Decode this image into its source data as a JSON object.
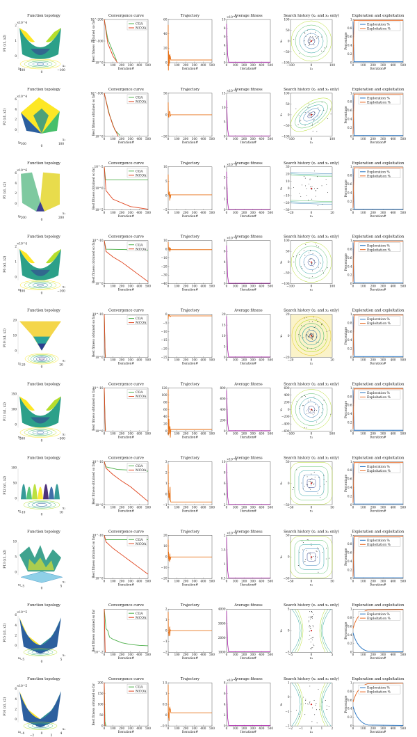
{
  "figure": {
    "col_titles": [
      "Function topology",
      "Convergence curve",
      "Trajectory",
      "Average fitness",
      "Search history (x1 and x2 only)",
      "Exploration and exploitation"
    ],
    "xlabel_iteration": "Iteration#",
    "ylabel_best": "Best fitness obtained so far",
    "ylabel_x2": "x2",
    "xlabel_x1": "x1",
    "ylabel_pct": "Percentage",
    "legend_conv": [
      "COA",
      "MCOA"
    ],
    "legend_expl": [
      "Exploration %",
      "Exploitation %"
    ],
    "colors": {
      "coa": "#4daf4a",
      "mcoa": "#e0421b",
      "traj": "#e8741c",
      "avg": "#b030b0",
      "explore": "#1f6fc0",
      "exploit": "#e8641c",
      "point": "#111111",
      "best": "#d42020"
    }
  },
  "chart_data": [
    {
      "fn": "F1",
      "type": "line",
      "topology": {
        "zlabel": "F1 (x1, x2)",
        "exp": "×10^4",
        "zticks": [
          "0",
          "1",
          "2"
        ],
        "xticks": [
          "100",
          "0",
          "−100"
        ],
        "shape": "bowl"
      },
      "conv": {
        "yticks": [
          "10^0",
          "10^-100",
          "10^-200"
        ],
        "coa": [
          [
            0,
            1
          ],
          [
            40,
            0.55
          ],
          [
            90,
            0.3
          ],
          [
            140,
            0.05
          ]
        ],
        "mcoa": [
          [
            0,
            1
          ],
          [
            40,
            0.45
          ],
          [
            100,
            0.15
          ],
          [
            150,
            0
          ]
        ]
      },
      "traj": {
        "yticks": [
          "0",
          "20",
          "40",
          "60"
        ],
        "ylim": [
          -5,
          75
        ],
        "start": 65,
        "end": 0
      },
      "avg": {
        "exp": "×10^4",
        "yticks": [
          "0",
          "2",
          "4",
          "6",
          "8",
          "10"
        ],
        "ylim": [
          0,
          10
        ],
        "start": 9
      },
      "search": {
        "ticks": [
          "−100",
          "0",
          "100"
        ],
        "yticks": [
          "−100",
          "−50",
          "0",
          "50",
          "100"
        ],
        "style": "circles"
      },
      "expl": {
        "kind": "step"
      }
    },
    {
      "fn": "F2",
      "type": "line",
      "topology": {
        "zlabel": "F2 (x1, x2)",
        "exp": "×10^4",
        "zticks": [
          "0",
          "2",
          "4",
          "6"
        ],
        "xticks": [
          "−100",
          "0",
          "100"
        ],
        "shape": "ridge"
      },
      "conv": {
        "yticks": [
          "10^0",
          "10^-100"
        ],
        "coa": [
          [
            0,
            1
          ],
          [
            60,
            0.5
          ],
          [
            120,
            0.15
          ],
          [
            180,
            0.02
          ]
        ],
        "mcoa": [
          [
            0,
            1
          ],
          [
            50,
            0.55
          ],
          [
            100,
            0.25
          ],
          [
            160,
            0
          ]
        ]
      },
      "traj": {
        "yticks": [
          "−50",
          "0",
          "50"
        ],
        "ylim": [
          -70,
          70
        ],
        "start": 40,
        "end": 0
      },
      "avg": {
        "exp": "×10^4",
        "yticks": [
          "0",
          "5",
          "10",
          "15"
        ],
        "ylim": [
          0,
          18
        ],
        "start": 15
      },
      "search": {
        "ticks": [
          "−100",
          "0",
          "100"
        ],
        "yticks": [
          "−100",
          "−50",
          "0",
          "50",
          "100"
        ],
        "style": "ellipses"
      },
      "expl": {
        "kind": "step"
      }
    },
    {
      "fn": "F5",
      "type": "line",
      "topology": {
        "zlabel": "F5 (x1, x2)",
        "exp": "×10^6",
        "zticks": [
          "0",
          "2",
          "4",
          "6"
        ],
        "xticks": [
          "−200",
          "0",
          "200"
        ],
        "shape": "valley"
      },
      "conv": {
        "yticks": [
          "10^5",
          "10^0",
          "10^-5"
        ],
        "coa": [
          [
            0,
            1
          ],
          [
            15,
            0.7
          ],
          [
            500,
            0.7
          ]
        ],
        "mcoa": [
          [
            0,
            1
          ],
          [
            20,
            0.45
          ],
          [
            100,
            0.25
          ],
          [
            300,
            0.08
          ],
          [
            500,
            0.02
          ]
        ]
      },
      "traj": {
        "yticks": [
          "−5",
          "0",
          "5",
          "10"
        ],
        "ylim": [
          -6,
          11
        ],
        "start": 8,
        "end": 0
      },
      "avg": {
        "exp": "×10^6",
        "yticks": [
          "0",
          "1",
          "2",
          "3",
          "4"
        ],
        "ylim": [
          0,
          4.5
        ],
        "start": 4
      },
      "search": {
        "ticks": [
          "−20",
          "0",
          "20"
        ],
        "yticks": [
          "−30",
          "−20",
          "−10",
          "0",
          "10",
          "20",
          "30"
        ],
        "style": "bands"
      },
      "expl": {
        "kind": "step"
      }
    },
    {
      "fn": "F6",
      "type": "line",
      "topology": {
        "zlabel": "F6 (x1, x2)",
        "exp": "×10^4",
        "zticks": [
          "0",
          "1",
          "2"
        ],
        "xticks": [
          "100",
          "0",
          "−100"
        ],
        "shape": "bowl"
      },
      "conv": {
        "yticks": [
          "10^0",
          "10^-10"
        ],
        "coa": [
          [
            0,
            1
          ],
          [
            20,
            0.8
          ],
          [
            500,
            0.78
          ]
        ],
        "mcoa": [
          [
            0,
            1
          ],
          [
            20,
            0.75
          ],
          [
            100,
            0.62
          ],
          [
            200,
            0.5
          ],
          [
            300,
            0.35
          ],
          [
            400,
            0.2
          ],
          [
            500,
            0.05
          ]
        ]
      },
      "traj": {
        "yticks": [
          "−40",
          "−30",
          "−20",
          "−10",
          "0",
          "10"
        ],
        "ylim": [
          -45,
          12
        ],
        "start": 10,
        "end": 0
      },
      "avg": {
        "exp": "×10^4",
        "yticks": [
          "0",
          "2",
          "4",
          "6",
          "8"
        ],
        "ylim": [
          0,
          9
        ],
        "start": 8
      },
      "search": {
        "ticks": [
          "−100",
          "0",
          "100"
        ],
        "yticks": [
          "−100",
          "−50",
          "0",
          "50",
          "100"
        ],
        "style": "circles"
      },
      "expl": {
        "kind": "step"
      }
    },
    {
      "fn": "F10",
      "type": "line",
      "topology": {
        "zlabel": "F10 (x1, x2)",
        "exp": "",
        "zticks": [
          "0",
          "10",
          "20"
        ],
        "xticks": [
          "−20",
          "0",
          "20"
        ],
        "shape": "funnel"
      },
      "conv": {
        "yticks": [
          "10^0",
          "10^-10"
        ],
        "coa": [
          [
            0,
            1
          ],
          [
            10,
            0.1
          ],
          [
            15,
            0.02
          ]
        ],
        "mcoa": [
          [
            0,
            1
          ],
          [
            10,
            0.08
          ],
          [
            12,
            0
          ]
        ]
      },
      "traj": {
        "yticks": [
          "−25",
          "−20",
          "−15",
          "−10",
          "−5",
          "0"
        ],
        "ylim": [
          -26,
          1
        ],
        "start": -2,
        "end": 0
      },
      "avg": {
        "exp": "",
        "yticks": [
          "0",
          "5",
          "10",
          "15",
          "20"
        ],
        "ylim": [
          0,
          21
        ],
        "start": 20
      },
      "search": {
        "ticks": [
          "−20",
          "0",
          "20"
        ],
        "yticks": [
          "−20",
          "0",
          "20"
        ],
        "style": "dense"
      },
      "expl": {
        "kind": "step"
      }
    },
    {
      "fn": "F11",
      "type": "line",
      "topology": {
        "zlabel": "F11 (x1, x2)",
        "exp": "",
        "zticks": [
          "0",
          "100",
          "150"
        ],
        "xticks": [
          "500",
          "0",
          "−500"
        ],
        "shape": "bowl"
      },
      "conv": {
        "yticks": [
          "10^0",
          "10^-10"
        ],
        "coa": [
          [
            0,
            1
          ],
          [
            10,
            0.2
          ],
          [
            15,
            0.02
          ]
        ],
        "mcoa": [
          [
            0,
            1
          ],
          [
            10,
            0.15
          ],
          [
            12,
            0
          ]
        ]
      },
      "traj": {
        "yticks": [
          "0",
          "20",
          "40",
          "60",
          "80",
          "100",
          "120"
        ],
        "ylim": [
          -5,
          125
        ],
        "start": 120,
        "end": 0
      },
      "avg": {
        "exp": "",
        "yticks": [
          "0",
          "200",
          "400",
          "600",
          "800"
        ],
        "ylim": [
          0,
          900
        ],
        "start": 850
      },
      "search": {
        "ticks": [
          "−500",
          "0",
          "500"
        ],
        "yticks": [
          "−600",
          "−400",
          "−200",
          "0",
          "200",
          "400",
          "600"
        ],
        "style": "circles"
      },
      "expl": {
        "kind": "step"
      }
    },
    {
      "fn": "F12",
      "type": "line",
      "topology": {
        "zlabel": "F12 (x1, x2)",
        "exp": "",
        "zticks": [
          "0",
          "50",
          "100"
        ],
        "xticks": [
          "−10",
          "0",
          "10"
        ],
        "shape": "waves"
      },
      "conv": {
        "yticks": [
          "10^0",
          "10^-10"
        ],
        "coa": [
          [
            0,
            1
          ],
          [
            20,
            0.88
          ],
          [
            150,
            0.82
          ],
          [
            350,
            0.8
          ],
          [
            500,
            0.78
          ]
        ],
        "mcoa": [
          [
            0,
            1
          ],
          [
            20,
            0.85
          ],
          [
            100,
            0.7
          ],
          [
            200,
            0.55
          ],
          [
            300,
            0.42
          ],
          [
            400,
            0.25
          ],
          [
            500,
            0.08
          ]
        ]
      },
      "traj": {
        "yticks": [
          "−1",
          "0",
          "1",
          "2",
          "3"
        ],
        "ylim": [
          -1.3,
          3.3
        ],
        "start": 3,
        "end": -1
      },
      "avg": {
        "exp": "×10^4",
        "yticks": [
          "2",
          "4",
          "6",
          "8",
          "10"
        ],
        "ylim": [
          0,
          11
        ],
        "start": 10.5
      },
      "search": {
        "ticks": [
          "−50",
          "0",
          "50"
        ],
        "yticks": [
          "−50",
          "0",
          "50"
        ],
        "style": "squares"
      },
      "expl": {
        "kind": "step"
      }
    },
    {
      "fn": "F13",
      "type": "line",
      "topology": {
        "zlabel": "F13 (x1, x2)",
        "exp": "",
        "zticks": [
          "0",
          "5",
          "10"
        ],
        "xticks": [
          "−5",
          "0",
          "5"
        ],
        "shape": "rough"
      },
      "conv": {
        "yticks": [
          "10^0",
          "10^-10"
        ],
        "coa": [
          [
            0,
            1
          ],
          [
            15,
            0.9
          ],
          [
            500,
            0.9
          ]
        ],
        "mcoa": [
          [
            0,
            1
          ],
          [
            20,
            0.85
          ],
          [
            100,
            0.7
          ],
          [
            200,
            0.55
          ],
          [
            300,
            0.4
          ],
          [
            400,
            0.25
          ],
          [
            500,
            0.1
          ]
        ]
      },
      "traj": {
        "yticks": [
          "−20",
          "−10",
          "0",
          "10",
          "20"
        ],
        "ylim": [
          -25,
          25
        ],
        "start": 20,
        "end": 0
      },
      "avg": {
        "exp": "×10^4",
        "yticks": [
          "0.5",
          "1",
          "1.5",
          "2"
        ],
        "ylim": [
          0,
          2.1
        ],
        "start": 2
      },
      "search": {
        "ticks": [
          "−50",
          "0",
          "50"
        ],
        "yticks": [
          "−50",
          "0",
          "50"
        ],
        "style": "squares"
      },
      "expl": {
        "kind": "step"
      }
    },
    {
      "fn": "F15",
      "type": "line",
      "topology": {
        "zlabel": "F15 (x1, x2)",
        "exp": "×10^5",
        "zticks": [
          "0",
          "2",
          "4",
          "6"
        ],
        "xticks": [
          "−5",
          "0",
          "5"
        ],
        "shape": "twopeak"
      },
      "conv": {
        "yticks": [
          "10^-2"
        ],
        "coa": [
          [
            0,
            1
          ],
          [
            20,
            0.55
          ],
          [
            40,
            0.5
          ],
          [
            60,
            0.35
          ],
          [
            100,
            0.3
          ],
          [
            200,
            0.22
          ],
          [
            300,
            0.18
          ],
          [
            400,
            0.16
          ],
          [
            500,
            0.15
          ]
        ],
        "mcoa": [
          [
            0,
            1
          ],
          [
            10,
            0.05
          ],
          [
            12,
            0
          ]
        ]
      },
      "traj": {
        "yticks": [
          "−2",
          "−1",
          "0",
          "1",
          "2"
        ],
        "ylim": [
          -2.3,
          2.3
        ],
        "start": 2,
        "end": 0
      },
      "avg": {
        "exp": "",
        "yticks": [
          "1000",
          "2000",
          "3000",
          "4000"
        ],
        "ylim": [
          0,
          4300
        ],
        "start": 4100
      },
      "search": {
        "ticks": [
          "−5",
          "0",
          "5"
        ],
        "yticks": [
          "−5",
          "0",
          "5"
        ],
        "style": "cross"
      },
      "expl": {
        "kind": "decay"
      }
    },
    {
      "fn": "F16",
      "type": "line",
      "topology": {
        "zlabel": "F16 (x1, x2)",
        "exp": "×10^5",
        "zticks": [
          "0",
          "2",
          "4",
          "6"
        ],
        "xticks": [
          "−4",
          "−2",
          "0",
          "2",
          "4"
        ],
        "shape": "twopeak"
      },
      "conv": {
        "yticks": [
          "0",
          "50",
          "100",
          "150",
          "200"
        ],
        "coa": [
          [
            0,
            1
          ],
          [
            8,
            0.1
          ],
          [
            20,
            0
          ]
        ],
        "mcoa": [
          [
            0,
            1
          ],
          [
            5,
            0.05
          ],
          [
            10,
            0
          ]
        ]
      },
      "traj": {
        "yticks": [
          "−0.5",
          "0",
          "0.5",
          "1",
          "1.5"
        ],
        "ylim": [
          -0.7,
          1.6
        ],
        "start": 1.5,
        "end": 0
      },
      "avg": {
        "exp": "×10^4",
        "yticks": [
          "0",
          "2",
          "4",
          "6",
          "8"
        ],
        "ylim": [
          0,
          8.5
        ],
        "start": 8
      },
      "search": {
        "ticks": [
          "−2",
          "−1",
          "0",
          "1",
          "2"
        ],
        "yticks": [
          "−2",
          "−1",
          "0",
          "1"
        ],
        "style": "hyper"
      },
      "expl": {
        "kind": "decay"
      }
    }
  ]
}
